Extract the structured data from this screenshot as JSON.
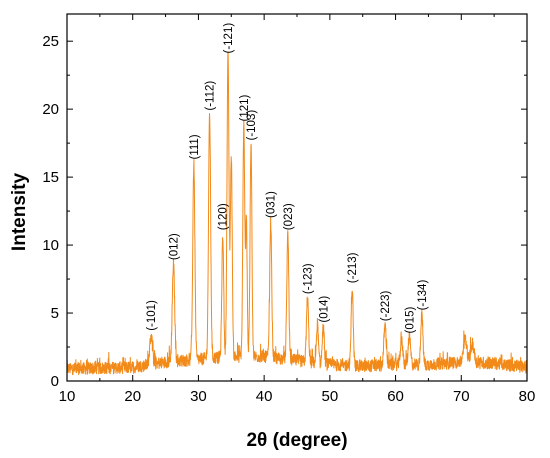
{
  "chart_data": {
    "type": "line",
    "xlabel": "2θ (degree)",
    "ylabel": "Intensity",
    "xlim": [
      10,
      80
    ],
    "ylim": [
      0,
      27
    ],
    "x_ticks": [
      "10",
      "20",
      "30",
      "40",
      "50",
      "60",
      "70",
      "80"
    ],
    "y_ticks": [
      "0",
      "5",
      "10",
      "15",
      "20",
      "25"
    ],
    "grid": false,
    "legend": "none",
    "series_color": "#f28a1a",
    "baseline": [
      [
        10,
        0.9
      ],
      [
        20,
        1.0
      ],
      [
        25,
        1.4
      ],
      [
        30,
        1.6
      ],
      [
        35,
        1.8
      ],
      [
        40,
        1.8
      ],
      [
        45,
        1.5
      ],
      [
        50,
        1.2
      ],
      [
        55,
        1.1
      ],
      [
        60,
        1.2
      ],
      [
        65,
        1.2
      ],
      [
        70,
        1.4
      ],
      [
        75,
        1.3
      ],
      [
        80,
        1.0
      ]
    ],
    "peaks": [
      {
        "x": 22.8,
        "y": 3.4,
        "w": 0.2,
        "label": "(-101)"
      },
      {
        "x": 26.2,
        "y": 8.6,
        "w": 0.18,
        "label": "(012)"
      },
      {
        "x": 29.3,
        "y": 16.0,
        "w": 0.16,
        "label": "(111)"
      },
      {
        "x": 31.7,
        "y": 19.6,
        "w": 0.16,
        "label": "(-112)"
      },
      {
        "x": 33.7,
        "y": 10.8,
        "w": 0.14,
        "label": "(120)"
      },
      {
        "x": 34.5,
        "y": 23.8,
        "w": 0.15,
        "label": "(-121)"
      },
      {
        "x": 35.0,
        "y": 16.6,
        "w": 0.14,
        "label": ""
      },
      {
        "x": 36.9,
        "y": 18.8,
        "w": 0.14,
        "label": "(121)"
      },
      {
        "x": 37.3,
        "y": 11.8,
        "w": 0.12,
        "label": ""
      },
      {
        "x": 38.0,
        "y": 17.4,
        "w": 0.14,
        "label": "(-103)"
      },
      {
        "x": 41.0,
        "y": 11.7,
        "w": 0.15,
        "label": "(031)"
      },
      {
        "x": 43.6,
        "y": 10.8,
        "w": 0.15,
        "label": "(023)"
      },
      {
        "x": 46.6,
        "y": 6.1,
        "w": 0.16,
        "label": "(-123)"
      },
      {
        "x": 48.1,
        "y": 4.2,
        "w": 0.15,
        "label": ""
      },
      {
        "x": 49.0,
        "y": 4.0,
        "w": 0.15,
        "label": "(014)"
      },
      {
        "x": 53.4,
        "y": 6.9,
        "w": 0.15,
        "label": "(-213)"
      },
      {
        "x": 58.4,
        "y": 4.1,
        "w": 0.18,
        "label": "(-223)"
      },
      {
        "x": 60.9,
        "y": 3.0,
        "w": 0.18,
        "label": ""
      },
      {
        "x": 62.1,
        "y": 3.2,
        "w": 0.18,
        "label": "(015)"
      },
      {
        "x": 64.0,
        "y": 4.9,
        "w": 0.16,
        "label": "(-134)"
      },
      {
        "x": 70.6,
        "y": 3.1,
        "w": 0.25,
        "label": ""
      },
      {
        "x": 71.7,
        "y": 2.7,
        "w": 0.25,
        "label": ""
      }
    ]
  }
}
